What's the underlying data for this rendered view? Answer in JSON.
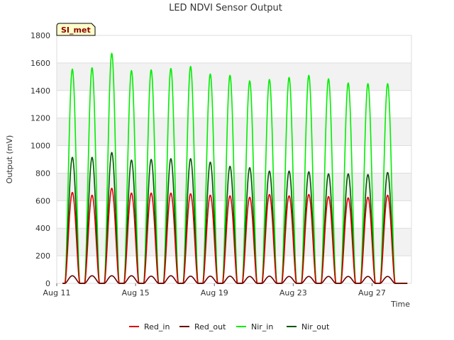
{
  "chart_data": {
    "type": "line",
    "title": "LED NDVI Sensor Output",
    "xlabel": "Time",
    "ylabel": "Output (mV)",
    "badge": "SI_met",
    "ylim": [
      0,
      1800
    ],
    "yticks": [
      0,
      200,
      400,
      600,
      800,
      1000,
      1200,
      1400,
      1600,
      1800
    ],
    "xlim": [
      "2023-08-11T00:00",
      "2023-08-29T00:00"
    ],
    "xticks": [
      {
        "t": "2023-08-11T00:00",
        "label": "Aug 11"
      },
      {
        "t": "2023-08-15T00:00",
        "label": "Aug 15"
      },
      {
        "t": "2023-08-19T00:00",
        "label": "Aug 19"
      },
      {
        "t": "2023-08-23T00:00",
        "label": "Aug 23"
      },
      {
        "t": "2023-08-27T00:00",
        "label": "Aug 27"
      }
    ],
    "grid": true,
    "legend_position": "bottom",
    "data_start": "2023-08-11T07:00",
    "data_end": "2023-08-28T19:00",
    "day_peak_times": [
      "2023-08-11T19:00",
      "2023-08-12T19:00",
      "2023-08-13T19:00",
      "2023-08-14T19:00",
      "2023-08-15T19:00",
      "2023-08-16T19:00",
      "2023-08-17T19:00",
      "2023-08-18T19:00",
      "2023-08-19T19:00",
      "2023-08-20T19:00",
      "2023-08-21T19:00",
      "2023-08-22T19:00",
      "2023-08-23T19:00",
      "2023-08-24T19:00",
      "2023-08-25T19:00",
      "2023-08-26T19:00",
      "2023-08-27T19:00"
    ],
    "series": [
      {
        "name": "Red_in",
        "color": "#dd0000",
        "peaks": [
          660,
          640,
          690,
          655,
          655,
          655,
          650,
          640,
          635,
          625,
          645,
          635,
          645,
          630,
          620,
          625,
          640
        ]
      },
      {
        "name": "Red_out",
        "color": "#660000",
        "peaks": [
          55,
          55,
          55,
          55,
          52,
          55,
          52,
          52,
          52,
          50,
          52,
          50,
          50,
          50,
          50,
          50,
          50
        ]
      },
      {
        "name": "Nir_in",
        "color": "#00ee00",
        "peaks": [
          1555,
          1565,
          1670,
          1545,
          1550,
          1560,
          1575,
          1520,
          1510,
          1470,
          1480,
          1495,
          1510,
          1485,
          1455,
          1450,
          1450
        ]
      },
      {
        "name": "Nir_out",
        "color": "#005500",
        "peaks": [
          915,
          915,
          950,
          895,
          900,
          905,
          905,
          880,
          850,
          840,
          815,
          815,
          810,
          795,
          795,
          790,
          805
        ]
      }
    ]
  }
}
